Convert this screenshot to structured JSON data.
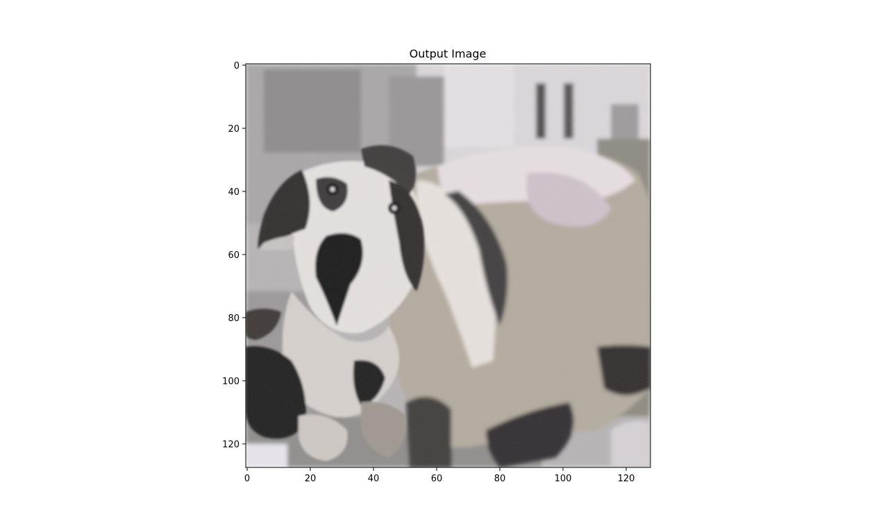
{
  "figure": {
    "title": "Output Image"
  },
  "axes": {
    "xticks": [
      "0",
      "20",
      "40",
      "60",
      "80",
      "100",
      "120"
    ],
    "yticks": [
      "0",
      "20",
      "40",
      "60",
      "80",
      "100",
      "120"
    ]
  },
  "image": {
    "resolution": [
      128,
      128
    ],
    "description_icon": "dog-photo-icon"
  }
}
